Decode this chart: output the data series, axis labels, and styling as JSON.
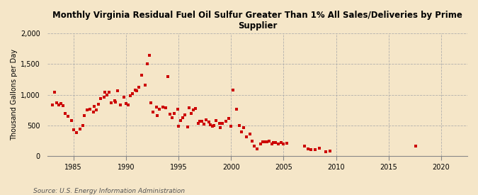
{
  "title": "Monthly Virginia Residual Fuel Oil Sulfur Greater Than 1% All Sales/Deliveries by Prime\nSupplier",
  "ylabel": "Thousand Gallons per Day",
  "source_text": "Source: U.S. Energy Information Administration",
  "background_color": "#f5e6c8",
  "dot_color": "#cc0000",
  "xlim": [
    1982.5,
    2022.5
  ],
  "ylim": [
    0,
    2000
  ],
  "yticks": [
    0,
    500,
    1000,
    1500,
    2000
  ],
  "xticks": [
    1985,
    1990,
    1995,
    2000,
    2005,
    2010,
    2015,
    2020
  ],
  "scatter_x": [
    1983.0,
    1983.2,
    1983.4,
    1983.6,
    1983.8,
    1984.0,
    1984.2,
    1984.5,
    1984.8,
    1985.0,
    1985.3,
    1985.6,
    1985.9,
    1986.0,
    1986.3,
    1986.6,
    1986.9,
    1987.0,
    1987.2,
    1987.4,
    1987.6,
    1987.9,
    1988.0,
    1988.2,
    1988.4,
    1988.6,
    1988.9,
    1989.0,
    1989.2,
    1989.5,
    1989.8,
    1990.0,
    1990.2,
    1990.4,
    1990.6,
    1990.9,
    1991.0,
    1991.2,
    1991.5,
    1991.8,
    1992.0,
    1992.2,
    1992.4,
    1992.6,
    1992.9,
    1993.0,
    1993.2,
    1993.5,
    1993.8,
    1994.0,
    1994.2,
    1994.4,
    1994.6,
    1994.9,
    1995.0,
    1995.2,
    1995.4,
    1995.6,
    1995.9,
    1996.0,
    1996.2,
    1996.4,
    1996.6,
    1996.9,
    1997.0,
    1997.2,
    1997.4,
    1997.6,
    1997.9,
    1998.0,
    1998.2,
    1998.4,
    1998.6,
    1998.9,
    1999.0,
    1999.2,
    1999.5,
    1999.8,
    2000.0,
    2000.2,
    2000.5,
    2000.8,
    2001.0,
    2001.2,
    2001.5,
    2001.8,
    2002.0,
    2002.2,
    2002.5,
    2002.8,
    2003.0,
    2003.2,
    2003.4,
    2003.6,
    2003.9,
    2004.0,
    2004.2,
    2004.5,
    2004.8,
    2005.0,
    2005.3,
    2007.0,
    2007.3,
    2007.6,
    2008.0,
    2008.4,
    2009.0,
    2009.4,
    2017.6
  ],
  "scatter_y": [
    840,
    1040,
    870,
    830,
    860,
    820,
    700,
    650,
    580,
    430,
    390,
    440,
    500,
    660,
    750,
    760,
    720,
    810,
    750,
    850,
    940,
    960,
    1040,
    1000,
    1040,
    870,
    900,
    880,
    1060,
    840,
    960,
    860,
    830,
    980,
    1020,
    1080,
    1060,
    1120,
    1320,
    1160,
    1500,
    1640,
    870,
    720,
    800,
    660,
    760,
    800,
    790,
    1290,
    680,
    630,
    700,
    760,
    490,
    580,
    630,
    670,
    480,
    790,
    700,
    750,
    780,
    530,
    570,
    570,
    520,
    590,
    560,
    510,
    490,
    500,
    580,
    530,
    460,
    540,
    570,
    620,
    490,
    1080,
    760,
    500,
    400,
    470,
    310,
    360,
    250,
    160,
    120,
    200,
    230,
    230,
    230,
    250,
    200,
    220,
    220,
    200,
    220,
    200,
    210,
    160,
    120,
    110,
    110,
    130,
    70,
    80,
    170
  ]
}
